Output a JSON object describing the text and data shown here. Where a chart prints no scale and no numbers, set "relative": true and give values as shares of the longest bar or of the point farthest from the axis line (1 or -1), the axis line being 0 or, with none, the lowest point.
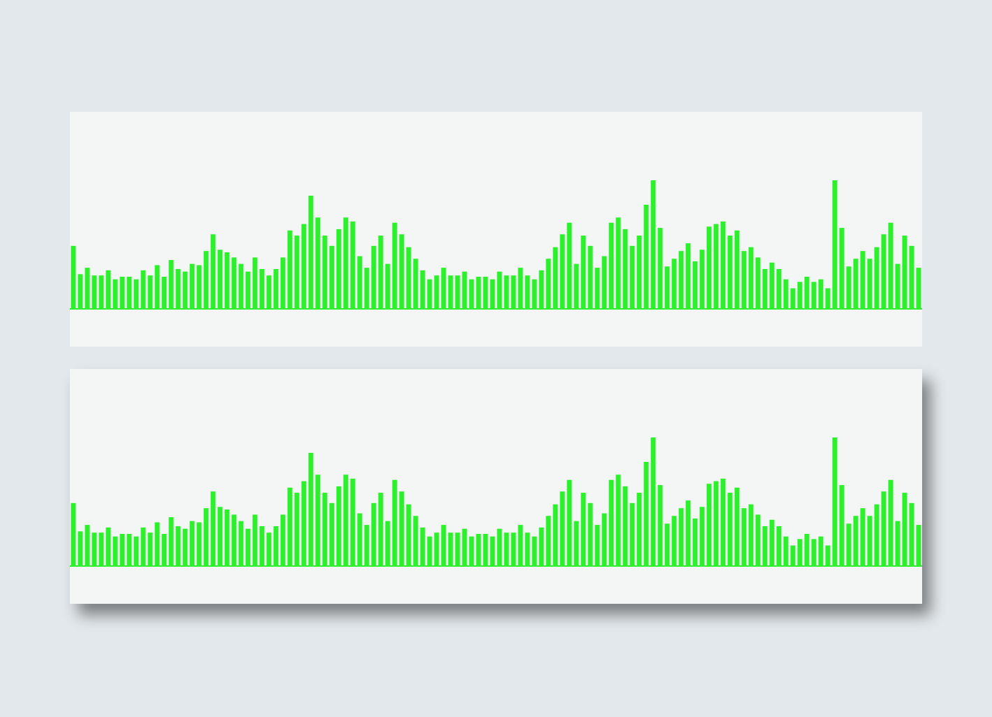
{
  "chart_data": [
    {
      "type": "bar",
      "relative": true,
      "color": "#2cf02c",
      "categories": [
        null,
        null,
        null,
        null,
        null,
        null,
        null,
        null,
        null,
        null,
        null,
        null,
        null,
        null,
        null,
        null,
        null,
        null,
        null,
        null,
        null,
        null,
        null,
        null,
        null,
        null,
        null,
        null,
        null,
        null,
        null,
        null,
        null,
        null,
        null,
        null,
        null,
        null,
        null,
        null,
        null,
        null,
        null,
        null,
        null,
        null,
        null,
        null,
        null,
        null,
        null,
        null,
        null,
        null,
        null,
        null,
        null,
        null,
        null,
        null,
        null,
        null,
        null,
        null,
        null,
        null,
        null,
        null,
        null,
        null,
        null,
        null,
        null,
        null,
        null,
        null,
        null,
        null,
        null,
        null,
        null,
        null,
        null,
        null,
        null,
        null,
        null,
        null,
        null,
        null,
        null,
        null,
        null,
        null,
        null,
        null,
        null,
        null,
        null,
        null,
        null,
        null,
        null,
        null,
        null,
        null,
        null,
        null,
        null,
        null,
        null,
        null,
        null,
        null,
        null,
        null,
        null,
        null,
        null,
        null,
        null,
        null
      ],
      "values": [
        0.49,
        0.27,
        0.32,
        0.26,
        0.26,
        0.3,
        0.23,
        0.25,
        0.25,
        0.23,
        0.3,
        0.26,
        0.34,
        0.25,
        0.38,
        0.31,
        0.29,
        0.35,
        0.34,
        0.45,
        0.58,
        0.46,
        0.44,
        0.4,
        0.35,
        0.29,
        0.4,
        0.31,
        0.26,
        0.31,
        0.4,
        0.61,
        0.57,
        0.66,
        0.88,
        0.71,
        0.57,
        0.49,
        0.62,
        0.71,
        0.68,
        0.41,
        0.32,
        0.49,
        0.57,
        0.35,
        0.67,
        0.58,
        0.48,
        0.39,
        0.3,
        0.23,
        0.26,
        0.32,
        0.26,
        0.26,
        0.29,
        0.23,
        0.25,
        0.25,
        0.23,
        0.29,
        0.26,
        0.26,
        0.32,
        0.26,
        0.23,
        0.3,
        0.39,
        0.48,
        0.58,
        0.67,
        0.35,
        0.57,
        0.49,
        0.32,
        0.41,
        0.67,
        0.71,
        0.62,
        0.49,
        0.57,
        0.81,
        1.0,
        0.63,
        0.33,
        0.39,
        0.45,
        0.51,
        0.37,
        0.46,
        0.64,
        0.66,
        0.68,
        0.57,
        0.61,
        0.45,
        0.48,
        0.4,
        0.31,
        0.36,
        0.31,
        0.23,
        0.16,
        0.21,
        0.25,
        0.21,
        0.23,
        0.16,
        1.0,
        0.63,
        0.33,
        0.39,
        0.45,
        0.39,
        0.48,
        0.58,
        0.67,
        0.35,
        0.57,
        0.49,
        0.32
      ]
    },
    {
      "type": "bar",
      "relative": true,
      "color": "#2cf02c",
      "categories": [
        null,
        null,
        null,
        null,
        null,
        null,
        null,
        null,
        null,
        null,
        null,
        null,
        null,
        null,
        null,
        null,
        null,
        null,
        null,
        null,
        null,
        null,
        null,
        null,
        null,
        null,
        null,
        null,
        null,
        null,
        null,
        null,
        null,
        null,
        null,
        null,
        null,
        null,
        null,
        null,
        null,
        null,
        null,
        null,
        null,
        null,
        null,
        null,
        null,
        null,
        null,
        null,
        null,
        null,
        null,
        null,
        null,
        null,
        null,
        null,
        null,
        null,
        null,
        null,
        null,
        null,
        null,
        null,
        null,
        null,
        null,
        null,
        null,
        null,
        null,
        null,
        null,
        null,
        null,
        null,
        null,
        null,
        null,
        null,
        null,
        null,
        null,
        null,
        null,
        null,
        null,
        null,
        null,
        null,
        null,
        null,
        null,
        null,
        null,
        null,
        null,
        null,
        null,
        null,
        null,
        null,
        null,
        null,
        null,
        null,
        null,
        null,
        null,
        null,
        null,
        null,
        null,
        null,
        null,
        null,
        null,
        null
      ],
      "values": [
        0.49,
        0.27,
        0.32,
        0.26,
        0.26,
        0.3,
        0.23,
        0.25,
        0.25,
        0.23,
        0.3,
        0.26,
        0.34,
        0.25,
        0.38,
        0.31,
        0.29,
        0.35,
        0.34,
        0.45,
        0.58,
        0.46,
        0.44,
        0.4,
        0.35,
        0.29,
        0.4,
        0.31,
        0.26,
        0.31,
        0.4,
        0.61,
        0.57,
        0.66,
        0.88,
        0.71,
        0.57,
        0.49,
        0.62,
        0.71,
        0.68,
        0.41,
        0.32,
        0.49,
        0.57,
        0.35,
        0.67,
        0.58,
        0.48,
        0.39,
        0.3,
        0.23,
        0.26,
        0.32,
        0.26,
        0.26,
        0.29,
        0.23,
        0.25,
        0.25,
        0.23,
        0.29,
        0.26,
        0.26,
        0.32,
        0.26,
        0.23,
        0.3,
        0.39,
        0.48,
        0.58,
        0.67,
        0.35,
        0.57,
        0.49,
        0.32,
        0.41,
        0.67,
        0.71,
        0.62,
        0.49,
        0.57,
        0.81,
        1.0,
        0.63,
        0.33,
        0.39,
        0.45,
        0.51,
        0.37,
        0.46,
        0.64,
        0.66,
        0.68,
        0.57,
        0.61,
        0.45,
        0.48,
        0.4,
        0.31,
        0.36,
        0.31,
        0.23,
        0.16,
        0.21,
        0.25,
        0.21,
        0.23,
        0.16,
        1.0,
        0.63,
        0.33,
        0.39,
        0.45,
        0.39,
        0.48,
        0.58,
        0.67,
        0.35,
        0.57,
        0.49,
        0.32
      ]
    }
  ]
}
